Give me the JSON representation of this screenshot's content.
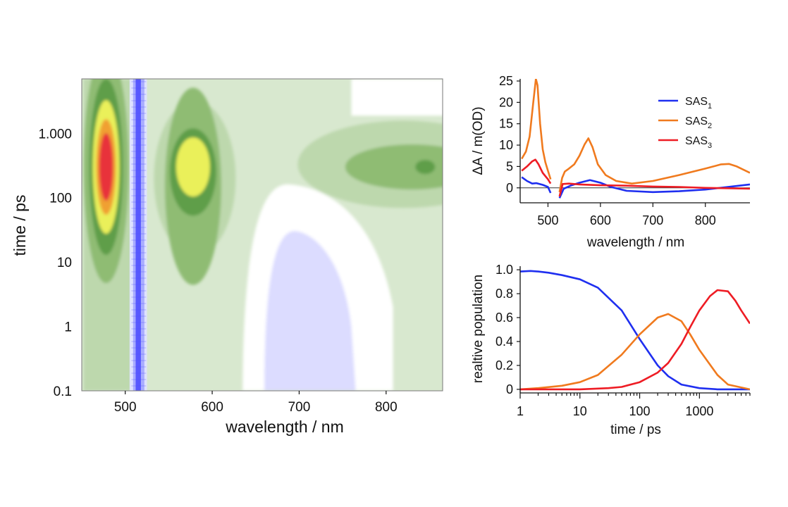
{
  "chart_data": [
    {
      "type": "heatmap",
      "xlabel": "wavelength / nm",
      "ylabel": "time / ps",
      "xlim": [
        450,
        865
      ],
      "ylim": [
        0.1,
        7000
      ],
      "yscale": "log",
      "xticks": [
        500,
        600,
        700,
        800
      ],
      "ytick_values": [
        0.1,
        1,
        10,
        100,
        1000
      ],
      "ytick_labels": [
        "0.1",
        "1",
        "10",
        "100",
        "1.000"
      ],
      "colors": {
        "background": "#d8e8cf",
        "light_green": "#bdd8ad",
        "mid_green": "#8fbc73",
        "dark_green": "#5f9e48",
        "yellow": "#eaf05a",
        "orange": "#f0a030",
        "red": "#e8323a",
        "white": "#ffffff",
        "light_blue": "#dcdcff",
        "blue_band": "#3c3cff"
      },
      "features": [
        {
          "name": "positive band",
          "wavelength": 478,
          "time_peak": 300,
          "level": "red"
        },
        {
          "name": "positive band",
          "wavelength": 578,
          "time_peak": 300,
          "level": "yellow"
        },
        {
          "name": "positive band",
          "wavelength": 840,
          "time_peak": 300,
          "level": "dark green"
        },
        {
          "name": "negative region",
          "wavelength": 700,
          "time_peak": 1,
          "level": "light blue"
        },
        {
          "name": "excitation scatter",
          "wavelength": 515,
          "level": "blue"
        }
      ]
    },
    {
      "type": "line",
      "xlabel": "wavelength / nm",
      "ylabel": "ΔA / m(OD)",
      "xlim": [
        447,
        885
      ],
      "ylim": [
        -3.5,
        25.5
      ],
      "xticks": [
        500,
        600,
        700,
        800
      ],
      "yticks": [
        0,
        5,
        10,
        15,
        20,
        25
      ],
      "legend_position": "top-right",
      "series": [
        {
          "name": "SAS",
          "subscript": "1",
          "color": "#1f2ff0",
          "segments": [
            {
              "x": [
                450,
                460,
                470,
                478,
                490,
                500,
                505
              ],
              "y": [
                2.5,
                1.6,
                1.0,
                1.1,
                0.7,
                0.2,
                -1.2
              ]
            },
            {
              "x": [
                522,
                530,
                545,
                560,
                580,
                600,
                620,
                650,
                700,
                750,
                800,
                850,
                885
              ],
              "y": [
                -2.4,
                -0.2,
                0.6,
                1.2,
                1.8,
                1.2,
                0.2,
                -0.7,
                -1.0,
                -0.8,
                -0.4,
                0.3,
                0.8
              ]
            }
          ]
        },
        {
          "name": "SAS",
          "subscript": "2",
          "color": "#f07a1e",
          "segments": [
            {
              "x": [
                450,
                458,
                465,
                472,
                477,
                480,
                485,
                490,
                495,
                500,
                505
              ],
              "y": [
                6.8,
                8.5,
                12.0,
                20.0,
                25.5,
                24.0,
                15.0,
                9.0,
                6.0,
                4.0,
                2.0
              ]
            },
            {
              "x": [
                522,
                527,
                532,
                540,
                550,
                560,
                570,
                577,
                585,
                595,
                610,
                630,
                660,
                700,
                750,
                800,
                830,
                845,
                860,
                885
              ],
              "y": [
                -1.0,
                2.3,
                3.8,
                4.5,
                5.5,
                7.5,
                10.2,
                11.6,
                9.5,
                5.5,
                3.0,
                1.6,
                1.0,
                1.6,
                3.0,
                4.5,
                5.5,
                5.6,
                5.0,
                3.5
              ]
            }
          ]
        },
        {
          "name": "SAS",
          "subscript": "3",
          "color": "#ee1c24",
          "segments": [
            {
              "x": [
                450,
                460,
                470,
                476,
                482,
                490,
                500,
                505
              ],
              "y": [
                4.0,
                5.0,
                6.2,
                6.6,
                5.5,
                3.5,
                2.0,
                1.0
              ]
            },
            {
              "x": [
                522,
                528,
                540,
                560,
                600,
                650,
                700,
                750,
                800,
                850,
                885
              ],
              "y": [
                -2.0,
                0.9,
                1.0,
                0.8,
                0.6,
                0.5,
                0.3,
                0.2,
                0.0,
                -0.1,
                -0.2
              ]
            }
          ]
        }
      ]
    },
    {
      "type": "line",
      "xlabel": "time / ps",
      "ylabel": "realtive population",
      "xscale": "log",
      "xlim": [
        1,
        7000
      ],
      "ylim": [
        -0.03,
        1.03
      ],
      "xticks": [
        1,
        10,
        100,
        1000
      ],
      "xtick_labels": [
        "1",
        "10",
        "100",
        "1000"
      ],
      "yticks": [
        0.0,
        0.2,
        0.4,
        0.6,
        0.8,
        1.0
      ],
      "ytick_labels": [
        "0",
        "0.2",
        "0.4",
        "0.6",
        "0.8",
        "1.0"
      ],
      "series": [
        {
          "color": "#1f2ff0",
          "x": [
            1,
            1.5,
            2,
            3,
            5,
            10,
            20,
            50,
            100,
            200,
            300,
            500,
            1000,
            2000,
            7000
          ],
          "y": [
            0.985,
            0.99,
            0.985,
            0.975,
            0.955,
            0.92,
            0.85,
            0.66,
            0.42,
            0.2,
            0.11,
            0.04,
            0.01,
            0.0,
            0.0
          ]
        },
        {
          "color": "#f07a1e",
          "x": [
            1,
            2,
            5,
            10,
            20,
            50,
            100,
            200,
            300,
            500,
            700,
            1000,
            2000,
            3000,
            7000
          ],
          "y": [
            0.0,
            0.01,
            0.03,
            0.06,
            0.12,
            0.29,
            0.46,
            0.6,
            0.63,
            0.57,
            0.46,
            0.33,
            0.12,
            0.04,
            0.0
          ]
        },
        {
          "color": "#ee1c24",
          "x": [
            1,
            10,
            30,
            50,
            100,
            200,
            300,
            500,
            700,
            1000,
            1500,
            2000,
            3000,
            4000,
            5000,
            7000
          ],
          "y": [
            0.0,
            0.0,
            0.01,
            0.02,
            0.06,
            0.14,
            0.22,
            0.38,
            0.52,
            0.66,
            0.78,
            0.83,
            0.82,
            0.74,
            0.66,
            0.55
          ]
        }
      ]
    }
  ]
}
